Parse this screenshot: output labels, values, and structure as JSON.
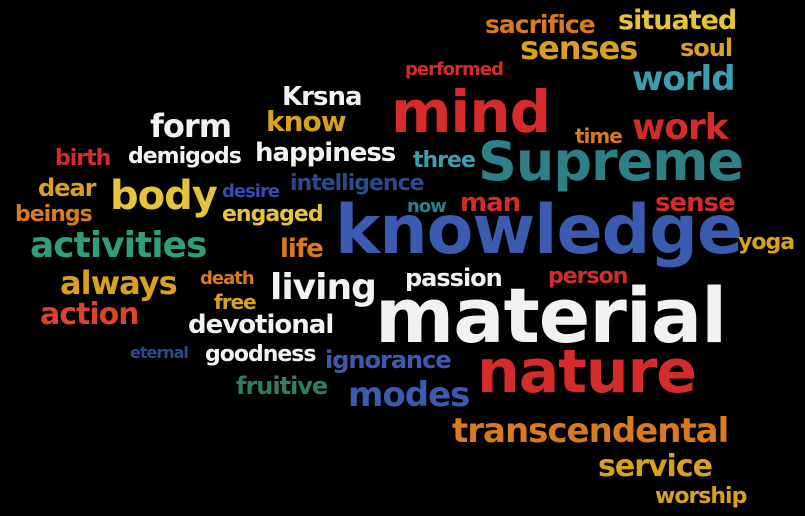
{
  "colors": {
    "background": "#000000",
    "red": "#d62b2b",
    "orange": "#d97a1e",
    "yellow": "#e6c43a",
    "teal": "#2f8f8a",
    "blue": "#3a5bb0",
    "white": "#f2f2f2",
    "gold": "#d9a21e"
  },
  "words": [
    {
      "text": "knowledge",
      "color": "#3a5bb0"
    },
    {
      "text": "material",
      "color": "#f2f2f2"
    },
    {
      "text": "nature",
      "color": "#d62b2b"
    },
    {
      "text": "Supreme",
      "color": "#2f7f86"
    },
    {
      "text": "mind",
      "color": "#d62b2b"
    },
    {
      "text": "transcendental",
      "color": "#d97a1e"
    },
    {
      "text": "activities",
      "color": "#2f9f7a"
    },
    {
      "text": "body",
      "color": "#e6c43a"
    },
    {
      "text": "living",
      "color": "#f2f2f2"
    },
    {
      "text": "work",
      "color": "#d62b2b"
    },
    {
      "text": "senses",
      "color": "#d9a21e"
    },
    {
      "text": "world",
      "color": "#3aa0b0"
    },
    {
      "text": "modes",
      "color": "#3a5bb0"
    },
    {
      "text": "always",
      "color": "#d9a21e"
    },
    {
      "text": "action",
      "color": "#d9442b"
    },
    {
      "text": "form",
      "color": "#f2f2f2"
    },
    {
      "text": "service",
      "color": "#d9a21e"
    },
    {
      "text": "devotional",
      "color": "#f2f2f2"
    },
    {
      "text": "sacrifice",
      "color": "#d97a1e"
    },
    {
      "text": "situated",
      "color": "#e6c43a"
    },
    {
      "text": "happiness",
      "color": "#f2f2f2"
    },
    {
      "text": "Krsna",
      "color": "#f2f2f2"
    },
    {
      "text": "know",
      "color": "#d9a21e"
    },
    {
      "text": "intelligence",
      "color": "#2a4a8a"
    },
    {
      "text": "ignorance",
      "color": "#3a5bb0"
    },
    {
      "text": "goodness",
      "color": "#f2f2f2"
    },
    {
      "text": "passion",
      "color": "#f2f2f2"
    },
    {
      "text": "demigods",
      "color": "#f2f2f2"
    },
    {
      "text": "engaged",
      "color": "#e6c43a"
    },
    {
      "text": "life",
      "color": "#d97a1e"
    },
    {
      "text": "man",
      "color": "#d62b2b"
    },
    {
      "text": "sense",
      "color": "#d62b2b"
    },
    {
      "text": "soul",
      "color": "#d9a21e"
    },
    {
      "text": "person",
      "color": "#d62b2b"
    },
    {
      "text": "yoga",
      "color": "#d9a21e"
    },
    {
      "text": "worship",
      "color": "#d9a21e"
    },
    {
      "text": "fruitive",
      "color": "#2f7f5a"
    },
    {
      "text": "birth",
      "color": "#d62b2b"
    },
    {
      "text": "dear",
      "color": "#d9a21e"
    },
    {
      "text": "beings",
      "color": "#d97a1e"
    },
    {
      "text": "desire",
      "color": "#3a4ab0"
    },
    {
      "text": "three",
      "color": "#3aa0b0"
    },
    {
      "text": "now",
      "color": "#2f7f86"
    },
    {
      "text": "death",
      "color": "#d97a1e"
    },
    {
      "text": "free",
      "color": "#d9a21e"
    },
    {
      "text": "eternal",
      "color": "#2a4a8a"
    },
    {
      "text": "performed",
      "color": "#d62b2b"
    },
    {
      "text": "time",
      "color": "#d97a1e"
    }
  ]
}
